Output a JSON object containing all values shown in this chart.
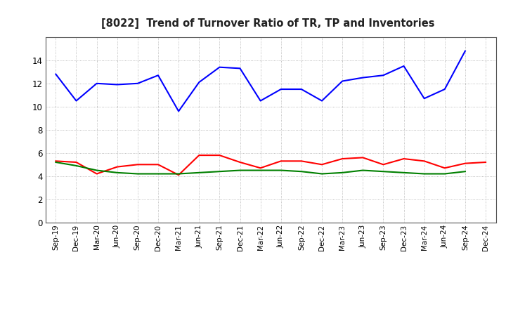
{
  "title": "[8022]  Trend of Turnover Ratio of TR, TP and Inventories",
  "x_labels": [
    "Sep-19",
    "Dec-19",
    "Mar-20",
    "Jun-20",
    "Sep-20",
    "Dec-20",
    "Mar-21",
    "Jun-21",
    "Sep-21",
    "Dec-21",
    "Mar-22",
    "Jun-22",
    "Sep-22",
    "Dec-22",
    "Mar-23",
    "Jun-23",
    "Sep-23",
    "Dec-23",
    "Mar-24",
    "Jun-24",
    "Sep-24",
    "Dec-24"
  ],
  "trade_receivables": [
    5.3,
    5.2,
    4.2,
    4.8,
    5.0,
    5.0,
    4.1,
    5.8,
    5.8,
    5.2,
    4.7,
    5.3,
    5.3,
    5.0,
    5.5,
    5.6,
    5.0,
    5.5,
    5.3,
    4.7,
    5.1,
    5.2
  ],
  "trade_payables": [
    12.8,
    10.5,
    12.0,
    11.9,
    12.0,
    12.7,
    9.6,
    12.1,
    13.4,
    13.3,
    10.5,
    11.5,
    11.5,
    10.5,
    12.2,
    12.5,
    12.7,
    13.5,
    10.7,
    11.5,
    14.8,
    null
  ],
  "inventories": [
    5.2,
    4.9,
    4.5,
    4.3,
    4.2,
    4.2,
    4.2,
    4.3,
    4.4,
    4.5,
    4.5,
    4.5,
    4.4,
    4.2,
    4.3,
    4.5,
    4.4,
    4.3,
    4.2,
    4.2,
    4.4,
    null
  ],
  "color_tr": "#ff0000",
  "color_tp": "#0000ff",
  "color_inv": "#008000",
  "ylim": [
    0.0,
    16.0
  ],
  "yticks": [
    0.0,
    2.0,
    4.0,
    6.0,
    8.0,
    10.0,
    12.0,
    14.0
  ],
  "background_color": "#ffffff",
  "grid_color": "#aaaaaa"
}
